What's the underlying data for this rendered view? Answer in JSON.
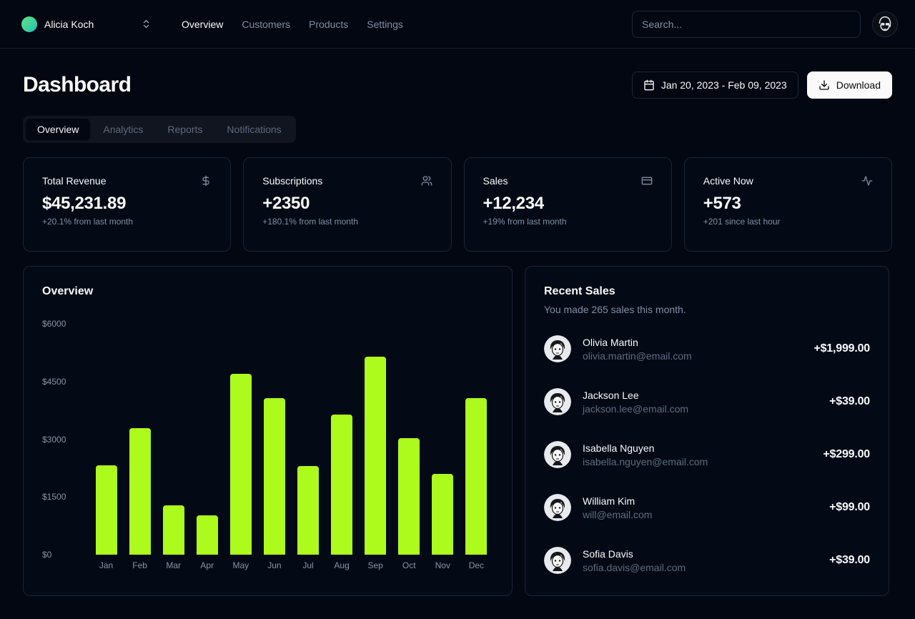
{
  "nav": {
    "team_name": "Alicia Koch",
    "links": [
      {
        "label": "Overview",
        "active": true
      },
      {
        "label": "Customers",
        "active": false
      },
      {
        "label": "Products",
        "active": false
      },
      {
        "label": "Settings",
        "active": false
      }
    ],
    "search_placeholder": "Search..."
  },
  "header": {
    "title": "Dashboard",
    "date_range": "Jan 20, 2023 - Feb 09, 2023",
    "download_label": "Download"
  },
  "tabs": [
    {
      "label": "Overview",
      "active": true
    },
    {
      "label": "Analytics",
      "active": false
    },
    {
      "label": "Reports",
      "active": false
    },
    {
      "label": "Notifications",
      "active": false
    }
  ],
  "stats": [
    {
      "title": "Total Revenue",
      "icon": "dollar-sign-icon",
      "value": "$45,231.89",
      "delta": "+20.1% from last month"
    },
    {
      "title": "Subscriptions",
      "icon": "users-icon",
      "value": "+2350",
      "delta": "+180.1% from last month"
    },
    {
      "title": "Sales",
      "icon": "credit-card-icon",
      "value": "+12,234",
      "delta": "+19% from last month"
    },
    {
      "title": "Active Now",
      "icon": "activity-icon",
      "value": "+573",
      "delta": "+201 since last hour"
    }
  ],
  "chart_data": {
    "type": "bar",
    "title": "Overview",
    "categories": [
      "Jan",
      "Feb",
      "Mar",
      "Apr",
      "May",
      "Jun",
      "Jul",
      "Aug",
      "Sep",
      "Oct",
      "Nov",
      "Dec"
    ],
    "values": [
      2320,
      3280,
      1280,
      1020,
      4700,
      4070,
      2300,
      3640,
      5150,
      3020,
      2100,
      4060
    ],
    "y_ticks": [
      "$6000",
      "$4500",
      "$3000",
      "$1500",
      "$0"
    ],
    "ylim": [
      0,
      6000
    ],
    "xlabel": "",
    "ylabel": "",
    "grid": false,
    "legend": false,
    "bar_color": "#adfa1d"
  },
  "recent_sales": {
    "title": "Recent Sales",
    "subtitle": "You made 265 sales this month.",
    "items": [
      {
        "name": "Olivia Martin",
        "email": "olivia.martin@email.com",
        "amount": "+$1,999.00"
      },
      {
        "name": "Jackson Lee",
        "email": "jackson.lee@email.com",
        "amount": "+$39.00"
      },
      {
        "name": "Isabella Nguyen",
        "email": "isabella.nguyen@email.com",
        "amount": "+$299.00"
      },
      {
        "name": "William Kim",
        "email": "will@email.com",
        "amount": "+$99.00"
      },
      {
        "name": "Sofia Davis",
        "email": "sofia.davis@email.com",
        "amount": "+$39.00"
      }
    ]
  },
  "colors": {
    "background": "#030711",
    "card_border": "#1b2436",
    "accent_bar": "#adfa1d",
    "muted_text": "#7f8ea3",
    "download_button_bg": "#fafafa"
  }
}
